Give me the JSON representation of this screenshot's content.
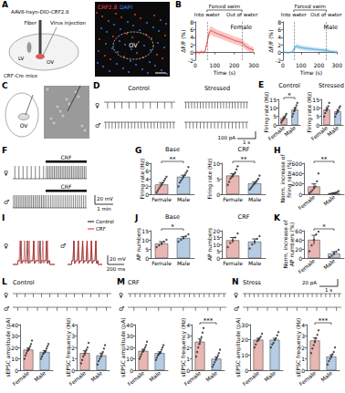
{
  "panel_labels": [
    "A",
    "B",
    "C",
    "D",
    "E",
    "F",
    "G",
    "H",
    "I",
    "J",
    "K",
    "L",
    "M",
    "N"
  ],
  "panel_A": {
    "virus": "AAV8-hsyn-DIO-CRF2.8",
    "fiber": "Fiber",
    "injection": "Virus injection",
    "ventricle": "LV",
    "region": "OV",
    "mouse": "CRF-Cre mice",
    "image_labels": [
      "CRF2.8",
      "DAPI"
    ],
    "image_colors": [
      "#ff3b3b",
      "#4a7dff"
    ],
    "image_region": "OV"
  },
  "panel_C": {
    "region": "OV"
  },
  "panel_D": {
    "conditions": [
      "Control",
      "Stressed"
    ],
    "sexes": [
      "♀",
      "♂"
    ],
    "spike_counts": [
      [
        10,
        22
      ],
      [
        22,
        18
      ]
    ],
    "scale_bar": [
      "100 pA",
      "1 s"
    ]
  },
  "panel_F": {
    "sexes": [
      "♀",
      "♂"
    ],
    "drug": "CRF",
    "spike_counts": [
      [
        8,
        26
      ],
      [
        20,
        20
      ]
    ],
    "scale_bar": [
      "20 mV",
      "1 min"
    ]
  },
  "panel_I": {
    "sexes": [
      "♀",
      "♂"
    ],
    "legend": [
      "Control",
      "CRF"
    ],
    "colors": [
      "#000000",
      "#e02020"
    ],
    "ap_counts": [
      [
        5,
        7
      ],
      [
        6,
        6
      ]
    ],
    "scale_bar": [
      "20 mV",
      "200 ms"
    ]
  },
  "panels_LMN": {
    "titles": [
      "Control",
      "CRF",
      "Stress"
    ],
    "sexes": [
      "♀",
      "♂"
    ],
    "event_counts": [
      [
        12,
        10
      ],
      [
        20,
        8
      ],
      [
        22,
        10
      ]
    ],
    "scale_bar": [
      "20 pA",
      "1 s"
    ]
  },
  "chart_data": [
    {
      "type": "line",
      "title": "Female",
      "x_label": "Time (s)",
      "y_label": "ΔF/F (%)",
      "color": "#e8413c",
      "x": [
        0,
        10,
        20,
        30,
        40,
        50,
        60,
        70,
        80,
        90,
        100,
        110,
        120,
        130,
        140,
        150,
        160,
        170,
        180,
        190,
        200,
        210,
        220,
        230,
        240,
        250,
        260,
        270,
        280,
        290,
        300
      ],
      "values": [
        0,
        0.1,
        -0.1,
        0.2,
        0,
        0.3,
        2.5,
        5,
        5.8,
        5.5,
        5.2,
        5,
        4.8,
        4.6,
        4.4,
        4.2,
        4,
        3.8,
        3.6,
        3.4,
        3.2,
        3,
        2.9,
        2.7,
        2.6,
        2,
        1.6,
        1.3,
        1,
        0.8,
        0.6
      ],
      "errors": [
        0.4,
        0.4,
        0.4,
        0.4,
        0.4,
        0.4,
        0.8,
        1,
        1.1,
        1.1,
        1.1,
        1,
        1,
        1,
        1,
        1,
        1,
        1,
        1,
        1,
        1,
        1,
        1,
        1,
        1,
        0.9,
        0.9,
        0.9,
        0.8,
        0.8,
        0.8
      ],
      "xlim": [
        0,
        300
      ],
      "xticks": [
        0,
        100,
        200,
        300
      ],
      "ylim": [
        -2,
        8
      ],
      "yticks": [
        -2,
        0,
        2,
        4,
        6,
        8
      ],
      "events": [
        {
          "label": "Into water",
          "x": 60
        },
        {
          "label": "Out of water",
          "x": 240
        }
      ],
      "period": "Forced swim"
    },
    {
      "type": "line",
      "title": "Male",
      "x_label": "Time (s)",
      "y_label": "ΔF/F (%)",
      "color": "#3aa0d8",
      "x": [
        0,
        10,
        20,
        30,
        40,
        50,
        60,
        70,
        80,
        90,
        100,
        110,
        120,
        130,
        140,
        150,
        160,
        170,
        180,
        190,
        200,
        210,
        220,
        230,
        240,
        250,
        260,
        270,
        280,
        290,
        300
      ],
      "values": [
        0,
        0.1,
        0,
        -0.1,
        0.1,
        0,
        0.8,
        1.5,
        1.6,
        1.4,
        1.3,
        1.2,
        1.1,
        1.1,
        1,
        1,
        0.9,
        0.9,
        0.8,
        0.8,
        0.7,
        0.7,
        0.6,
        0.6,
        0.6,
        0.4,
        0.3,
        0.2,
        0.2,
        0.1,
        0.1
      ],
      "errors": [
        0.3,
        0.3,
        0.3,
        0.3,
        0.3,
        0.3,
        0.5,
        0.6,
        0.6,
        0.6,
        0.6,
        0.6,
        0.6,
        0.6,
        0.6,
        0.6,
        0.5,
        0.5,
        0.5,
        0.5,
        0.5,
        0.5,
        0.5,
        0.5,
        0.5,
        0.5,
        0.4,
        0.4,
        0.4,
        0.4,
        0.4
      ],
      "xlim": [
        0,
        300
      ],
      "xticks": [
        0,
        100,
        200,
        300
      ],
      "ylim": [
        -2,
        8
      ],
      "yticks": [
        -2,
        0,
        2,
        4,
        6,
        8
      ],
      "events": [
        {
          "label": "Into water",
          "x": 60
        },
        {
          "label": "Out of water",
          "x": 240
        }
      ],
      "period": "Forced swim"
    },
    {
      "type": "bar",
      "title": "Control",
      "y_label": "Firing rate (Hz)",
      "categories": [
        "Female",
        "Male"
      ],
      "colors": [
        "#e9b7b3",
        "#b5cce4"
      ],
      "values": [
        4,
        9
      ],
      "errors": [
        0.8,
        1.2
      ],
      "points": [
        [
          1.5,
          2.5,
          3,
          4,
          4.5,
          5.5,
          6.5
        ],
        [
          5,
          6.5,
          8,
          9,
          10,
          11.5,
          13
        ]
      ],
      "ylim": [
        0,
        15
      ],
      "yticks": [
        0,
        5,
        10,
        15
      ],
      "annotations": [
        "*"
      ]
    },
    {
      "type": "bar",
      "title": "Stressed",
      "y_label": "Firing rate (Hz)",
      "categories": [
        "Female",
        "Male"
      ],
      "colors": [
        "#e9b7b3",
        "#b5cce4"
      ],
      "values": [
        9,
        8
      ],
      "errors": [
        1.2,
        1
      ],
      "points": [
        [
          5,
          7,
          8.5,
          9.5,
          11,
          13
        ],
        [
          5,
          6.5,
          7.5,
          8.5,
          10,
          11
        ]
      ],
      "ylim": [
        0,
        15
      ],
      "yticks": [
        0,
        5,
        10,
        15
      ]
    },
    {
      "type": "bar",
      "title": "Base",
      "y_label": "Firing rate (Hz)",
      "categories": [
        "Female",
        "Male"
      ],
      "colors": [
        "#e9b7b3",
        "#b5cce4"
      ],
      "values": [
        2.5,
        4.5
      ],
      "errors": [
        0.4,
        0.4
      ],
      "points": [
        [
          0.5,
          1,
          1.5,
          2,
          2.5,
          3,
          3.5,
          4,
          4.5
        ],
        [
          2,
          3,
          3.5,
          4,
          4.5,
          5,
          5.5,
          6,
          7
        ]
      ],
      "ylim": [
        0,
        8
      ],
      "yticks": [
        0,
        2,
        4,
        6,
        8
      ],
      "annotations": [
        "**"
      ]
    },
    {
      "type": "bar",
      "title": "CRF",
      "y_label": "Firing rate (Hz)",
      "categories": [
        "Female",
        "Male"
      ],
      "colors": [
        "#e9b7b3",
        "#b5cce4"
      ],
      "values": [
        6,
        3.5
      ],
      "errors": [
        0.6,
        0.4
      ],
      "points": [
        [
          3,
          4,
          5,
          5.5,
          6,
          6.5,
          7,
          8,
          9
        ],
        [
          1.5,
          2,
          2.5,
          3,
          3.5,
          4,
          4.5,
          5,
          6
        ]
      ],
      "ylim": [
        0,
        10
      ],
      "yticks": [
        0,
        5,
        10
      ],
      "annotations": [
        "**"
      ]
    },
    {
      "type": "bar",
      "y_label": "Norm. increase of firing rate (%)",
      "categories": [
        "Female",
        "Male"
      ],
      "colors": [
        "#e9b7b3",
        "#b5cce4"
      ],
      "values": [
        150,
        20
      ],
      "errors": [
        50,
        10
      ],
      "points": [
        [
          20,
          50,
          80,
          120,
          150,
          250,
          400
        ],
        [
          0,
          5,
          10,
          15,
          25,
          40,
          60
        ]
      ],
      "ylim": [
        0,
        600
      ],
      "yticks": [
        0,
        200,
        400,
        600
      ],
      "annotations": [
        "**"
      ]
    },
    {
      "type": "bar",
      "title": "Base",
      "y_label": "AP numbers",
      "categories": [
        "Female",
        "Male"
      ],
      "colors": [
        "#e9b7b3",
        "#b5cce4"
      ],
      "values": [
        8,
        11
      ],
      "errors": [
        1,
        0.8
      ],
      "points": [
        [
          6,
          7,
          8,
          9,
          10
        ],
        [
          9,
          10,
          11,
          12,
          13
        ]
      ],
      "ylim": [
        0,
        15
      ],
      "yticks": [
        0,
        5,
        10,
        15
      ],
      "annotations": [
        "*"
      ]
    },
    {
      "type": "bar",
      "title": "CRF",
      "y_label": "AP numbers",
      "categories": [
        "Female",
        "Male"
      ],
      "colors": [
        "#e9b7b3",
        "#b5cce4"
      ],
      "values": [
        13,
        12
      ],
      "errors": [
        2,
        2
      ],
      "points": [
        [
          8,
          11,
          13,
          15,
          18
        ],
        [
          7,
          10,
          12,
          14,
          16
        ]
      ],
      "ylim": [
        0,
        20
      ],
      "yticks": [
        0,
        5,
        10,
        15,
        20
      ]
    },
    {
      "type": "bar",
      "y_label": "Norm. increase of AP numbers (%)",
      "categories": [
        "Female",
        "Male"
      ],
      "colors": [
        "#e9b7b3",
        "#b5cce4"
      ],
      "values": [
        40,
        10
      ],
      "errors": [
        10,
        4
      ],
      "points": [
        [
          15,
          28,
          40,
          52,
          58
        ],
        [
          2,
          5,
          10,
          14,
          18
        ]
      ],
      "ylim": [
        0,
        60
      ],
      "yticks": [
        0,
        20,
        40,
        60
      ],
      "annotations": [
        "*"
      ]
    },
    {
      "type": "bar",
      "y_label": "sEPSC amplitude (pA)",
      "categories": [
        "Female",
        "Male"
      ],
      "colors": [
        "#e9b7b3",
        "#b5cce4"
      ],
      "values": [
        18,
        16
      ],
      "errors": [
        1.5,
        1.2
      ],
      "points": [
        [
          10,
          13,
          15,
          17,
          18,
          19,
          21,
          23,
          26
        ],
        [
          10,
          12,
          14,
          15,
          16,
          17,
          19,
          21,
          23
        ]
      ],
      "ylim": [
        0,
        40
      ],
      "yticks": [
        0,
        10,
        20,
        30,
        40
      ]
    },
    {
      "type": "bar",
      "y_label": "sEPSC frequency (Hz)",
      "categories": [
        "Female",
        "Male"
      ],
      "colors": [
        "#e9b7b3",
        "#b5cce4"
      ],
      "values": [
        1.5,
        1.3
      ],
      "errors": [
        0.2,
        0.2
      ],
      "points": [
        [
          0.6,
          0.9,
          1.2,
          1.4,
          1.6,
          1.8,
          2,
          2.4
        ],
        [
          0.5,
          0.8,
          1,
          1.2,
          1.4,
          1.6,
          1.9,
          2.2
        ]
      ],
      "ylim": [
        0,
        4
      ],
      "yticks": [
        0,
        1,
        2,
        3,
        4
      ]
    },
    {
      "type": "bar",
      "y_label": "sEPSC amplitude (pA)",
      "categories": [
        "Female",
        "Male"
      ],
      "colors": [
        "#e9b7b3",
        "#b5cce4"
      ],
      "values": [
        17,
        15
      ],
      "errors": [
        1.4,
        1.1
      ],
      "points": [
        [
          10,
          12,
          14,
          16,
          17,
          18,
          20,
          22,
          25
        ],
        [
          9,
          11,
          13,
          14,
          15,
          16,
          18,
          20,
          22
        ]
      ],
      "ylim": [
        0,
        40
      ],
      "yticks": [
        0,
        10,
        20,
        30,
        40
      ]
    },
    {
      "type": "bar",
      "y_label": "sEPSC frequency (Hz)",
      "categories": [
        "Female",
        "Male"
      ],
      "colors": [
        "#e9b7b3",
        "#b5cce4"
      ],
      "values": [
        2.5,
        1
      ],
      "errors": [
        0.25,
        0.15
      ],
      "points": [
        [
          1.2,
          1.6,
          2,
          2.3,
          2.6,
          2.9,
          3.3,
          3.7
        ],
        [
          0.3,
          0.5,
          0.7,
          0.9,
          1.1,
          1.3,
          1.5,
          1.8
        ]
      ],
      "ylim": [
        0,
        4
      ],
      "yticks": [
        0,
        1,
        2,
        3,
        4
      ],
      "annotations": [
        "***"
      ]
    },
    {
      "type": "bar",
      "y_label": "sEPSC amplitude (pA)",
      "categories": [
        "Female",
        "Male"
      ],
      "colors": [
        "#e9b7b3",
        "#b5cce4"
      ],
      "values": [
        20,
        20
      ],
      "errors": [
        1,
        1
      ],
      "points": [
        [
          15,
          17,
          19,
          20,
          21,
          22,
          24
        ],
        [
          15,
          17,
          18,
          20,
          21,
          23,
          25
        ]
      ],
      "ylim": [
        0,
        30
      ],
      "yticks": [
        0,
        10,
        20,
        30
      ]
    },
    {
      "type": "bar",
      "y_label": "sEPSC frequency (Hz)",
      "categories": [
        "Female",
        "Male"
      ],
      "colors": [
        "#e9b7b3",
        "#b5cce4"
      ],
      "values": [
        2.6,
        1.2
      ],
      "errors": [
        0.25,
        0.15
      ],
      "points": [
        [
          1.5,
          1.9,
          2.2,
          2.5,
          2.8,
          3.1,
          3.5
        ],
        [
          0.5,
          0.8,
          1,
          1.2,
          1.4,
          1.6,
          2
        ]
      ],
      "ylim": [
        0,
        4
      ],
      "yticks": [
        0,
        1,
        2,
        3,
        4
      ],
      "annotations": [
        "***"
      ]
    }
  ]
}
